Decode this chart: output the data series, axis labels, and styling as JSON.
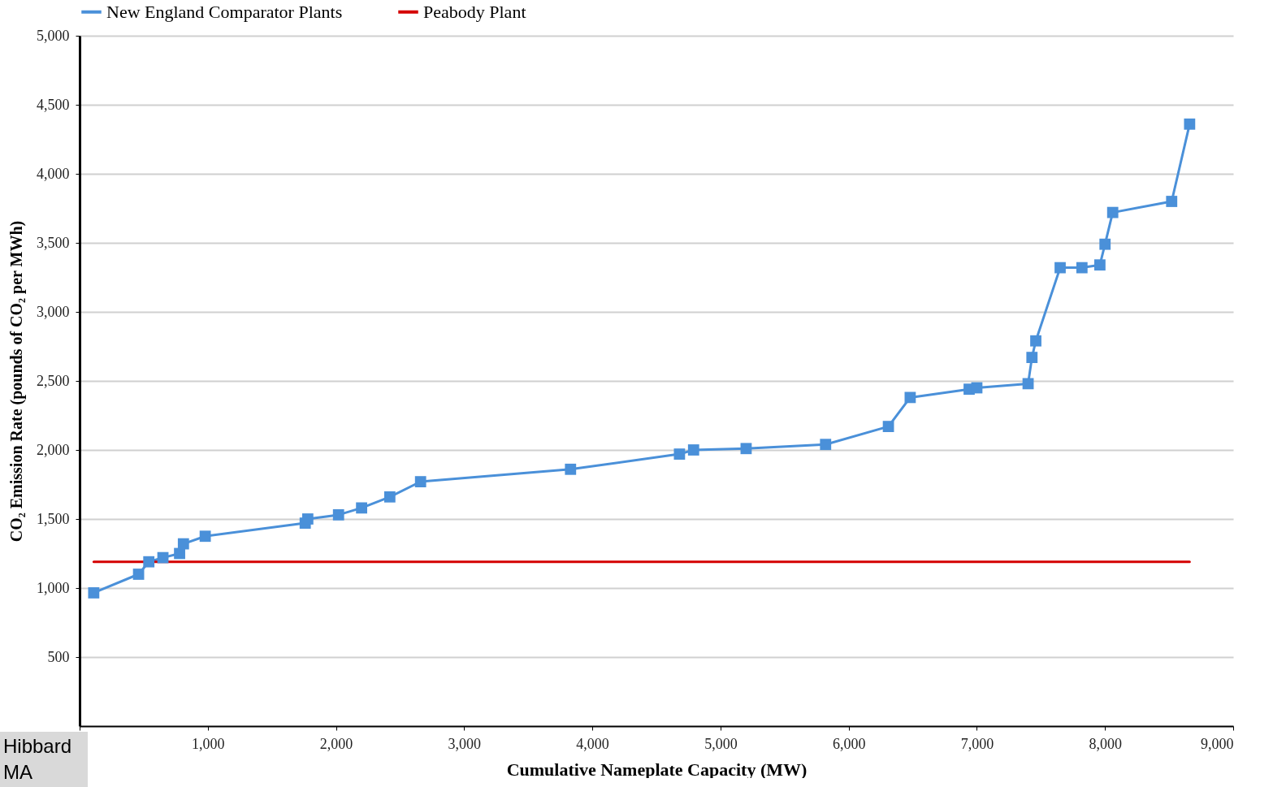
{
  "chart_data": {
    "type": "line",
    "xlabel": "Cumulative Nameplate Capacity (MW)",
    "ylabel": "CO₂ Emission Rate (pounds of CO₂ per MWh)",
    "xlim": [
      0,
      9000
    ],
    "xticks": [
      {
        "value": 0,
        "label": null
      },
      {
        "value": 1000,
        "label": "1,000"
      },
      {
        "value": 2000,
        "label": "2,000"
      },
      {
        "value": 3000,
        "label": "3,000"
      },
      {
        "value": 4000,
        "label": "4,000"
      },
      {
        "value": 5000,
        "label": "5,000"
      },
      {
        "value": 6000,
        "label": "6,000"
      },
      {
        "value": 7000,
        "label": "7,000"
      },
      {
        "value": 8000,
        "label": "8,000"
      },
      {
        "value": 9000,
        "label": "9,000"
      }
    ],
    "ylim": [
      0,
      5000
    ],
    "yticks": [
      500,
      {
        "value": 1000,
        "label": "1,000"
      },
      {
        "value": 1500,
        "label": "1,500"
      },
      {
        "value": 2000,
        "label": "2,000"
      },
      {
        "value": 2500,
        "label": "2,500"
      },
      {
        "value": 3000,
        "label": "3,000"
      },
      {
        "value": 3500,
        "label": "3,500"
      },
      {
        "value": 4000,
        "label": "4,000"
      },
      {
        "value": 4500,
        "label": "4,500"
      },
      {
        "value": 5000,
        "label": "5,000"
      }
    ],
    "grid": "y",
    "legend": "top",
    "marker": "square",
    "line_style": "solid",
    "annotations": [
      "Hibbard",
      "MA"
    ],
    "series": [
      {
        "name": "New England Comparator Plants",
        "color": "#4a90d9",
        "x": [
          110,
          460,
          540,
          650,
          780,
          810,
          980,
          1760,
          1780,
          2020,
          2200,
          2420,
          2660,
          3830,
          4680,
          4790,
          5200,
          5820,
          6310,
          6480,
          6940,
          7000,
          7400,
          7430,
          7460,
          7650,
          7820,
          7960,
          8000,
          8060,
          8520,
          8660
        ],
        "values": [
          965,
          1100,
          1190,
          1220,
          1250,
          1320,
          1375,
          1470,
          1500,
          1530,
          1580,
          1660,
          1770,
          1860,
          1970,
          2000,
          2010,
          2040,
          2170,
          2380,
          2440,
          2450,
          2480,
          2670,
          2790,
          3320,
          3320,
          3340,
          3490,
          3720,
          3800,
          4360
        ]
      },
      {
        "name": "Peabody Plant",
        "color": "#d40000",
        "marker": "none",
        "x": [
          110,
          8660
        ],
        "values": [
          1190,
          1190
        ]
      }
    ]
  }
}
